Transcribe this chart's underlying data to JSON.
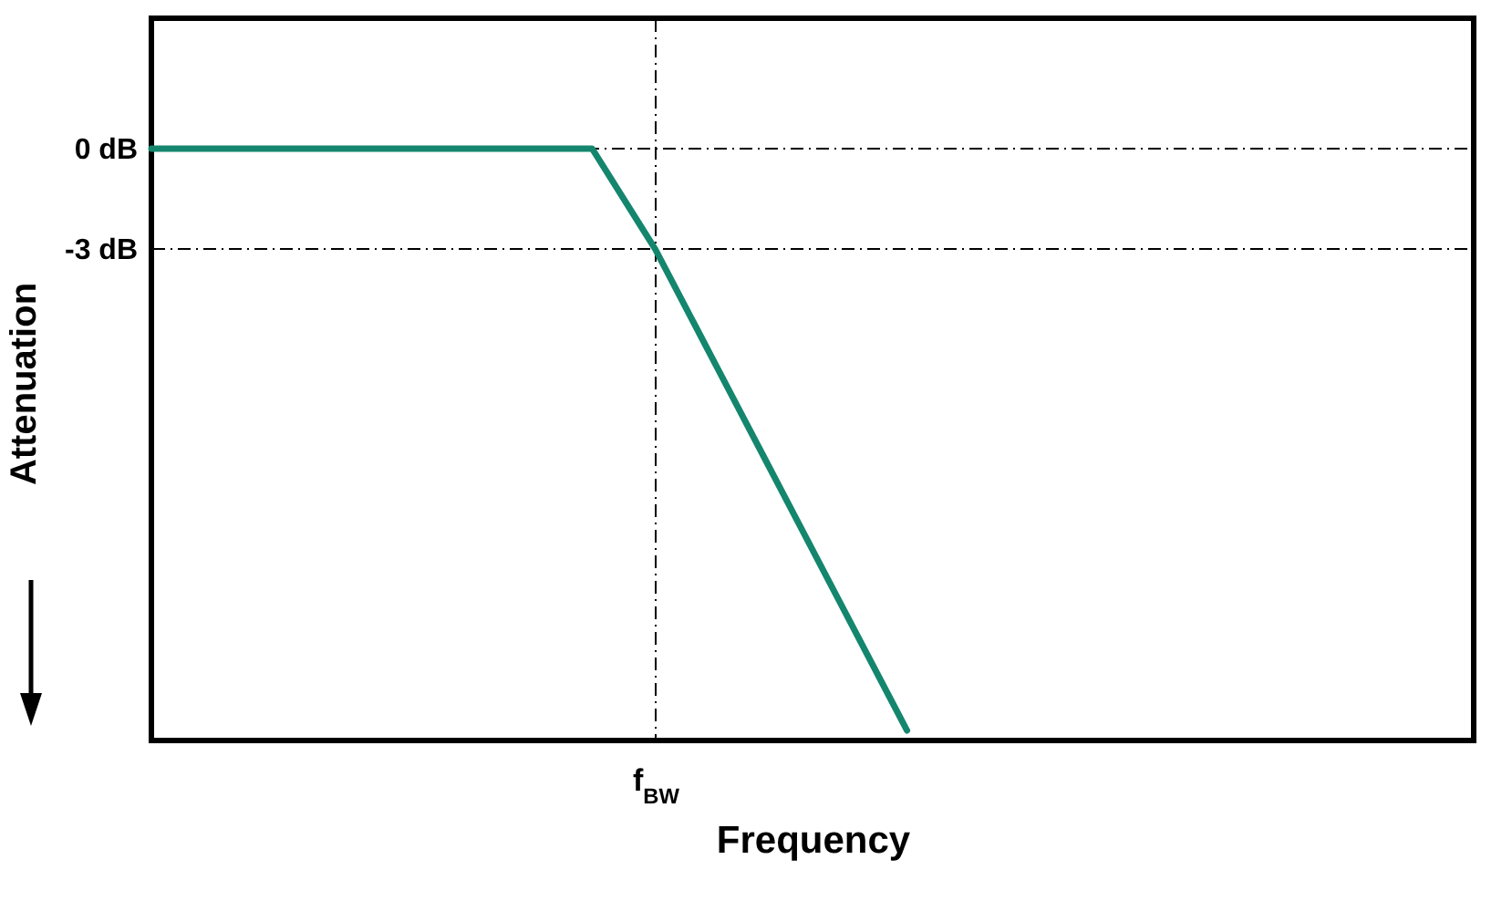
{
  "chart_data": {
    "type": "line",
    "xlabel": "Frequency",
    "ylabel": "Attenuation",
    "categories": [
      null,
      null,
      null,
      null,
      null,
      null,
      null,
      null,
      "f$_{BW}$",
      null,
      null,
      null,
      null,
      null,
      null,
      null,
      null,
      null,
      null,
      null,
      null,
      null
    ],
    "series": [
      {
        "color": "#14866d",
        "values": [
          0,
          0,
          0,
          0,
          0,
          0,
          0,
          0,
          -3,
          -6.6,
          -10.2,
          -13.8,
          -17.4,
          null,
          null,
          null,
          null,
          null,
          null,
          null,
          null,
          null
        ]
      }
    ],
    "ylim": [
      -17.7,
      3.9
    ],
    "yticks": [
      {
        "value": 0,
        "label": "0 dB"
      },
      {
        "value": -3,
        "label": "-3 dB"
      }
    ],
    "grid": true,
    "line_style": "solid"
  }
}
